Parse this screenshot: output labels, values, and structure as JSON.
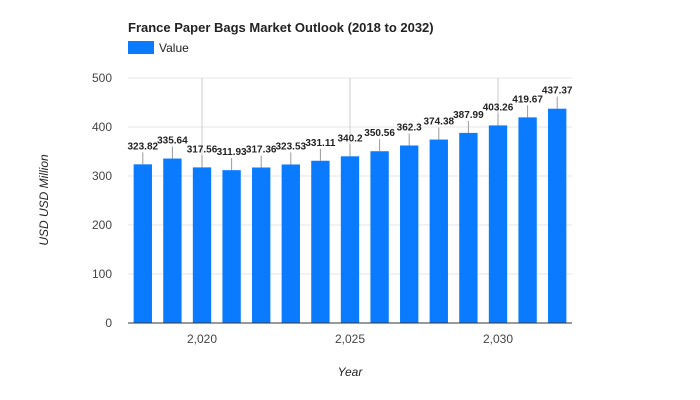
{
  "chart_data": {
    "type": "bar",
    "title": "France Paper Bags Market Outlook (2018 to 2032)",
    "xlabel": "Year",
    "ylabel": "USD USD Million",
    "legend": {
      "entries": [
        "Value"
      ],
      "placement": "top-left"
    },
    "color": "#0a7bff",
    "ylim": [
      0,
      500
    ],
    "yticks": [
      0,
      100,
      200,
      300,
      400,
      500
    ],
    "xticks": [
      2020,
      2025,
      2030
    ],
    "xtick_labels": [
      "2,020",
      "2,025",
      "2,030"
    ],
    "grid": true,
    "series": [
      {
        "name": "Value",
        "x": [
          2018,
          2019,
          2020,
          2021,
          2022,
          2023,
          2024,
          2025,
          2026,
          2027,
          2028,
          2029,
          2030,
          2031,
          2032
        ],
        "values": [
          323.82,
          335.64,
          317.56,
          311.93,
          317.36,
          323.53,
          331.11,
          340.2,
          350.56,
          362.3,
          374.38,
          387.99,
          403.26,
          419.67,
          437.37
        ],
        "labels": [
          "323.82",
          "335.64",
          "317.56",
          "311.93",
          "317.36",
          "323.53",
          "331.11",
          "340.2",
          "350.56",
          "362.3",
          "374.38",
          "387.99",
          "403.26",
          "419.67",
          "437.37"
        ]
      }
    ]
  }
}
